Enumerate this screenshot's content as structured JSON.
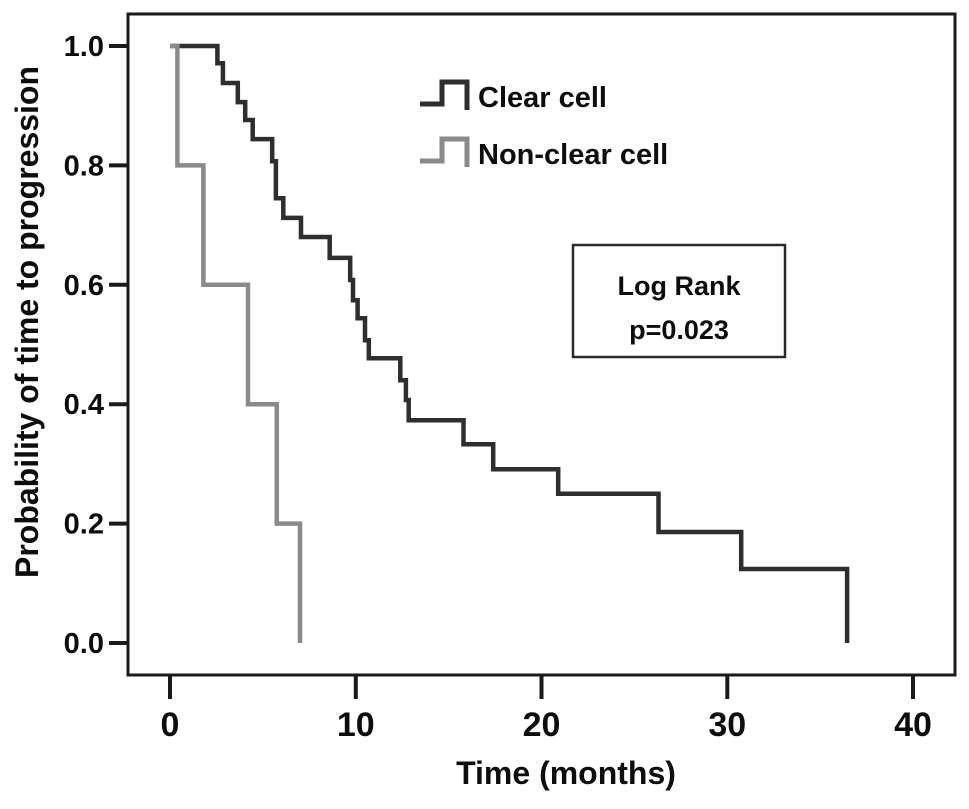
{
  "figure": {
    "background": "#ffffff",
    "x_axis_title": "Time (months)",
    "y_axis_title": "Probability of time to progression"
  },
  "legend": {
    "items": [
      {
        "label": "Clear cell",
        "color": "#2e2e2e"
      },
      {
        "label": "Non-clear cell",
        "color": "#8a8a8a"
      }
    ]
  },
  "annotation": {
    "line1": "Log Rank",
    "line2": "p=0.023"
  },
  "chart_data": {
    "type": "line",
    "subtype": "kaplan-meier-step",
    "title": "",
    "xlabel": "Time (months)",
    "ylabel": "Probability of time to progression",
    "xlim": [
      -2.3,
      42.3
    ],
    "ylim": [
      -0.054,
      1.058
    ],
    "x_ticks": [
      0,
      10,
      20,
      30,
      40
    ],
    "y_ticks": [
      0.0,
      0.2,
      0.4,
      0.6,
      0.8,
      1.0
    ],
    "grid": false,
    "legend_position": "upper-right-inside",
    "axis_color": "#1a1a1a",
    "series": [
      {
        "name": "Clear cell",
        "color": "#2e2e2e",
        "points": [
          [
            0,
            1.0
          ],
          [
            2.55,
            0.971
          ],
          [
            2.85,
            0.938
          ],
          [
            3.65,
            0.906
          ],
          [
            4.05,
            0.876
          ],
          [
            4.45,
            0.844
          ],
          [
            5.5,
            0.807
          ],
          [
            5.7,
            0.745
          ],
          [
            6.1,
            0.712
          ],
          [
            7.05,
            0.68
          ],
          [
            8.6,
            0.645
          ],
          [
            9.7,
            0.608
          ],
          [
            9.85,
            0.574
          ],
          [
            10.1,
            0.544
          ],
          [
            10.5,
            0.507
          ],
          [
            10.7,
            0.477
          ],
          [
            12.4,
            0.44
          ],
          [
            12.7,
            0.407
          ],
          [
            12.85,
            0.373
          ],
          [
            15.8,
            0.333
          ],
          [
            17.4,
            0.291
          ],
          [
            20.9,
            0.25
          ],
          [
            26.3,
            0.186
          ],
          [
            30.75,
            0.124
          ],
          [
            36.45,
            0.0
          ]
        ]
      },
      {
        "name": "Non-clear cell",
        "color": "#8a8a8a",
        "points": [
          [
            0,
            1.0
          ],
          [
            0.4,
            0.8
          ],
          [
            1.8,
            0.6
          ],
          [
            4.2,
            0.4
          ],
          [
            5.75,
            0.2
          ],
          [
            7.0,
            0.0
          ]
        ]
      }
    ],
    "annotation": {
      "text": [
        "Log Rank",
        "p=0.023"
      ]
    }
  }
}
